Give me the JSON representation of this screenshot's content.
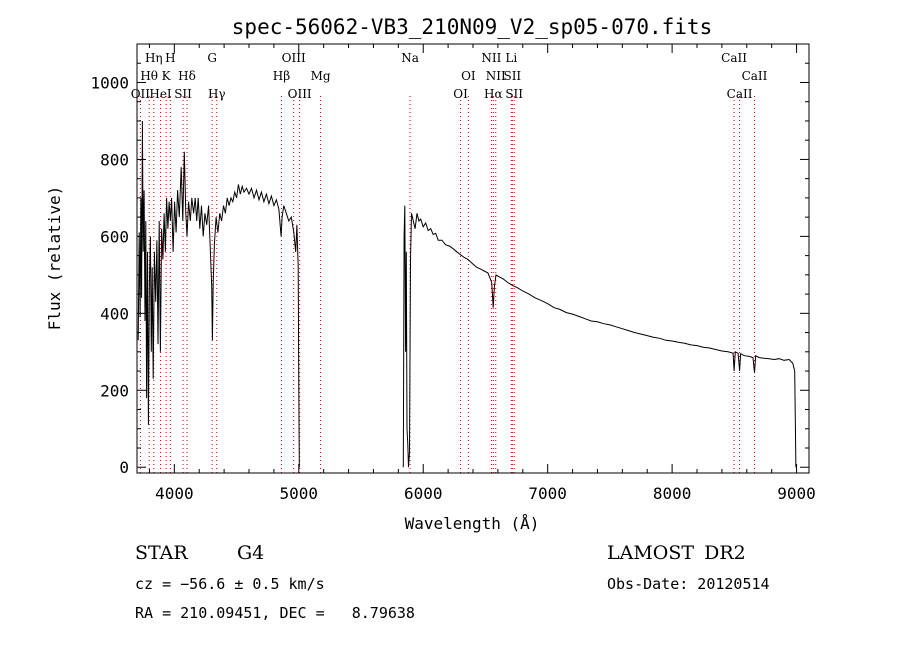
{
  "chart_data": {
    "type": "line",
    "title": "spec-56062-VB3_210N09_V2_sp05-070.fits",
    "xlabel": "Wavelength (Å)",
    "ylabel": "Flux (relative)",
    "xlim": [
      3700,
      9100
    ],
    "ylim": [
      -15,
      1100
    ],
    "xticks": [
      4000,
      5000,
      6000,
      7000,
      8000,
      9000
    ],
    "yticks": [
      0,
      200,
      400,
      600,
      800,
      1000
    ],
    "grid": false,
    "series": [
      {
        "segments": [
          [
            [
              3710,
              330
            ],
            [
              3718,
              610
            ],
            [
              3725,
              390
            ],
            [
              3731,
              700
            ],
            [
              3737,
              440
            ],
            [
              3743,
              900
            ],
            [
              3750,
              560
            ],
            [
              3757,
              720
            ],
            [
              3764,
              380
            ],
            [
              3771,
              640
            ],
            [
              3777,
              180
            ],
            [
              3784,
              560
            ],
            [
              3792,
              110
            ],
            [
              3800,
              480
            ],
            [
              3808,
              600
            ],
            [
              3815,
              300
            ],
            [
              3822,
              520
            ],
            [
              3830,
              230
            ],
            [
              3840,
              560
            ],
            [
              3850,
              430
            ],
            [
              3860,
              590
            ],
            [
              3869,
              320
            ],
            [
              3878,
              640
            ],
            [
              3888,
              300
            ],
            [
              3898,
              620
            ],
            [
              3908,
              540
            ],
            [
              3918,
              660
            ],
            [
              3928,
              560
            ],
            [
              3938,
              700
            ],
            [
              3948,
              620
            ],
            [
              3958,
              690
            ],
            [
              3968,
              640
            ],
            [
              3978,
              700
            ],
            [
              3990,
              560
            ],
            [
              4002,
              690
            ],
            [
              4014,
              610
            ],
            [
              4026,
              720
            ],
            [
              4040,
              650
            ],
            [
              4055,
              780
            ],
            [
              4068,
              640
            ],
            [
              4080,
              820
            ],
            [
              4092,
              660
            ],
            [
              4102,
              600
            ],
            [
              4115,
              690
            ],
            [
              4128,
              640
            ],
            [
              4140,
              700
            ],
            [
              4155,
              660
            ],
            [
              4168,
              700
            ],
            [
              4180,
              640
            ],
            [
              4192,
              700
            ],
            [
              4205,
              620
            ],
            [
              4218,
              680
            ],
            [
              4232,
              600
            ],
            [
              4246,
              660
            ],
            [
              4260,
              630
            ],
            [
              4275,
              680
            ],
            [
              4290,
              560
            ],
            [
              4300,
              470
            ],
            [
              4306,
              330
            ],
            [
              4312,
              480
            ],
            [
              4322,
              580
            ],
            [
              4336,
              650
            ],
            [
              4350,
              610
            ],
            [
              4365,
              660
            ],
            [
              4380,
              640
            ],
            [
              4395,
              680
            ],
            [
              4410,
              660
            ],
            [
              4425,
              700
            ],
            [
              4440,
              680
            ],
            [
              4455,
              700
            ],
            [
              4470,
              690
            ],
            [
              4485,
              715
            ],
            [
              4500,
              700
            ],
            [
              4515,
              735
            ],
            [
              4530,
              710
            ],
            [
              4545,
              730
            ],
            [
              4560,
              715
            ],
            [
              4580,
              725
            ],
            [
              4600,
              710
            ],
            [
              4620,
              725
            ],
            [
              4640,
              700
            ],
            [
              4660,
              720
            ],
            [
              4680,
              695
            ],
            [
              4700,
              715
            ],
            [
              4720,
              690
            ],
            [
              4740,
              710
            ],
            [
              4760,
              685
            ],
            [
              4780,
              705
            ],
            [
              4800,
              680
            ],
            [
              4820,
              695
            ],
            [
              4840,
              670
            ],
            [
              4858,
              600
            ],
            [
              4866,
              650
            ],
            [
              4880,
              680
            ],
            [
              4900,
              660
            ],
            [
              4920,
              640
            ],
            [
              4940,
              650
            ],
            [
              4960,
              610
            ],
            [
              4975,
              560
            ],
            [
              4985,
              630
            ],
            [
              4995,
              520
            ],
            [
              5000,
              200
            ],
            [
              5004,
              0
            ]
          ],
          [
            [
              5840,
              0
            ],
            [
              5846,
              600
            ],
            [
              5852,
              680
            ],
            [
              5858,
              300
            ],
            [
              5864,
              560
            ],
            [
              5870,
              100
            ],
            [
              5876,
              60
            ],
            [
              5882,
              0
            ],
            [
              5890,
              40
            ],
            [
              5898,
              540
            ],
            [
              5906,
              660
            ],
            [
              5920,
              640
            ],
            [
              5935,
              620
            ],
            [
              5950,
              660
            ],
            [
              5965,
              640
            ],
            [
              5980,
              645
            ],
            [
              6000,
              625
            ],
            [
              6020,
              635
            ],
            [
              6040,
              615
            ],
            [
              6060,
              620
            ],
            [
              6080,
              605
            ],
            [
              6100,
              608
            ],
            [
              6120,
              590
            ],
            [
              6150,
              590
            ],
            [
              6180,
              578
            ],
            [
              6210,
              575
            ],
            [
              6240,
              568
            ],
            [
              6270,
              560
            ],
            [
              6300,
              552
            ],
            [
              6330,
              545
            ],
            [
              6360,
              540
            ],
            [
              6400,
              528
            ],
            [
              6430,
              520
            ],
            [
              6460,
              515
            ],
            [
              6490,
              510
            ],
            [
              6520,
              505
            ],
            [
              6550,
              480
            ],
            [
              6562,
              415
            ],
            [
              6572,
              470
            ],
            [
              6585,
              500
            ],
            [
              6610,
              495
            ],
            [
              6640,
              490
            ],
            [
              6680,
              480
            ],
            [
              6720,
              472
            ],
            [
              6760,
              466
            ],
            [
              6800,
              458
            ],
            [
              6850,
              450
            ],
            [
              6900,
              440
            ],
            [
              6950,
              433
            ],
            [
              7000,
              425
            ],
            [
              7050,
              415
            ],
            [
              7100,
              410
            ],
            [
              7150,
              402
            ],
            [
              7200,
              398
            ],
            [
              7250,
              392
            ],
            [
              7300,
              386
            ],
            [
              7350,
              380
            ],
            [
              7400,
              378
            ],
            [
              7450,
              373
            ],
            [
              7500,
              370
            ],
            [
              7550,
              365
            ],
            [
              7600,
              360
            ],
            [
              7650,
              355
            ],
            [
              7700,
              350
            ],
            [
              7750,
              346
            ],
            [
              7800,
              342
            ],
            [
              7850,
              338
            ],
            [
              7900,
              335
            ],
            [
              7950,
              330
            ],
            [
              8000,
              328
            ],
            [
              8050,
              325
            ],
            [
              8100,
              322
            ],
            [
              8150,
              318
            ],
            [
              8200,
              316
            ],
            [
              8250,
              312
            ],
            [
              8300,
              310
            ],
            [
              8350,
              306
            ],
            [
              8400,
              302
            ],
            [
              8450,
              300
            ],
            [
              8490,
              296
            ],
            [
              8498,
              250
            ],
            [
              8508,
              300
            ],
            [
              8530,
              296
            ],
            [
              8542,
              250
            ],
            [
              8550,
              295
            ],
            [
              8580,
              290
            ],
            [
              8620,
              288
            ],
            [
              8650,
              285
            ],
            [
              8662,
              245
            ],
            [
              8672,
              290
            ],
            [
              8700,
              285
            ],
            [
              8740,
              283
            ],
            [
              8780,
              282
            ],
            [
              8820,
              280
            ],
            [
              8860,
              282
            ],
            [
              8900,
              278
            ],
            [
              8940,
              280
            ],
            [
              8970,
              270
            ],
            [
              8985,
              250
            ],
            [
              8995,
              0
            ]
          ]
        ]
      }
    ],
    "lines": [
      {
        "label": "OII",
        "wl": 3727,
        "row": 3
      },
      {
        "label": "Hη",
        "wl": 3835,
        "row": 1
      },
      {
        "label": "Hθ",
        "wl": 3798,
        "row": 2
      },
      {
        "label": "HeI",
        "wl": 3889,
        "row": 3
      },
      {
        "label": "H",
        "wl": 3968,
        "row": 1
      },
      {
        "label": "K",
        "wl": 3934,
        "row": 2
      },
      {
        "label": "SII",
        "wl": 4070,
        "row": 3
      },
      {
        "label": "Hδ",
        "wl": 4102,
        "row": 2
      },
      {
        "label": "G",
        "wl": 4304,
        "row": 1
      },
      {
        "label": "Hγ",
        "wl": 4341,
        "row": 3
      },
      {
        "label": "Hβ",
        "wl": 4861,
        "row": 2
      },
      {
        "label": "OIII",
        "wl": 4959,
        "row": 1
      },
      {
        "label": "OIII",
        "wl": 5007,
        "row": 3
      },
      {
        "label": "Mg",
        "wl": 5175,
        "row": 2
      },
      {
        "label": "Na",
        "wl": 5894,
        "row": 1
      },
      {
        "label": "OI",
        "wl": 6300,
        "row": 3
      },
      {
        "label": "OI",
        "wl": 6363,
        "row": 2
      },
      {
        "label": "NII",
        "wl": 6548,
        "row": 1
      },
      {
        "label": "Hα",
        "wl": 6563,
        "row": 3
      },
      {
        "label": "NII",
        "wl": 6583,
        "row": 2
      },
      {
        "label": "Li",
        "wl": 6708,
        "row": 1
      },
      {
        "label": "SII",
        "wl": 6716,
        "row": 2
      },
      {
        "label": "SII",
        "wl": 6731,
        "row": 3
      },
      {
        "label": "CaII",
        "wl": 8498,
        "row": 1
      },
      {
        "label": "CaII",
        "wl": 8542,
        "row": 3
      },
      {
        "label": "CaII",
        "wl": 8662,
        "row": 2
      }
    ]
  },
  "info": {
    "object_class": "STAR",
    "subclass": "G4",
    "survey": "LAMOST DR2",
    "redshift_line": "cz = −56.6 ± 0.5 km/s",
    "obs_date": "Obs-Date: 20120514",
    "coords": "RA = 210.09451, DEC =   8.79638"
  }
}
